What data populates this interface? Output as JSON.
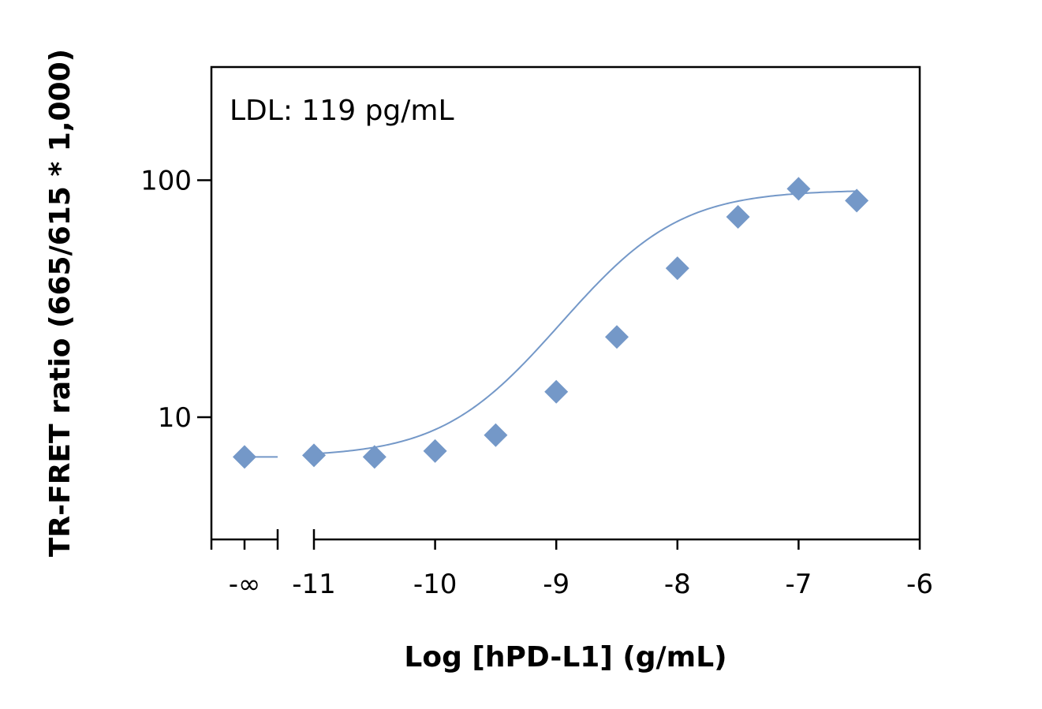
{
  "chart_data": {
    "type": "scatter",
    "title": "",
    "xlabel": "Log [hPD-L1] (g/mL)",
    "ylabel": "TR-FRET ratio (665/615 * 1,000)",
    "annotation": "LDL: 119 pg/mL",
    "y_scale": "log",
    "xlim": [
      -11.3,
      -6
    ],
    "ylim": [
      3.2,
      320
    ],
    "x_ticks": [
      {
        "value": -11,
        "label": "-11"
      },
      {
        "value": -10,
        "label": "-10"
      },
      {
        "value": -9,
        "label": "-9"
      },
      {
        "value": -8,
        "label": "-8"
      },
      {
        "value": -7,
        "label": "-7"
      },
      {
        "value": -6,
        "label": "-6"
      }
    ],
    "y_ticks": [
      {
        "value": 10,
        "label": "10"
      },
      {
        "value": 100,
        "label": "100"
      }
    ],
    "zero_label": "-∞",
    "zero_point": {
      "y": 6.8
    },
    "axis_break": true,
    "grid": false,
    "legend": "none",
    "marker": "diamond",
    "color": "#7498C8",
    "series": [
      {
        "x": [
          -11,
          -10.5,
          -10,
          -9.5,
          -9,
          -8.5,
          -8,
          -7.5,
          -7,
          -6.52
        ],
        "y": [
          6.9,
          6.8,
          7.2,
          8.4,
          12.8,
          21.8,
          42.5,
          70,
          92,
          82
        ]
      }
    ],
    "fit": {
      "bottom": 6.8,
      "top": 91,
      "log_ec50": -8.4,
      "hill": 1.0,
      "x_range": [
        -11.3,
        -6.52
      ],
      "zero_segment": true
    }
  }
}
